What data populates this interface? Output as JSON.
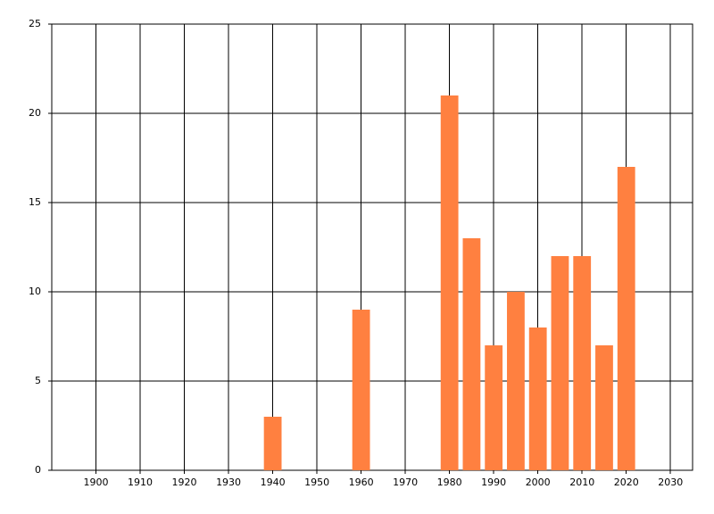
{
  "chart_data": {
    "type": "bar",
    "x": [
      1940,
      1960,
      1980,
      1985,
      1990,
      1995,
      2000,
      2005,
      2010,
      2015,
      2020
    ],
    "values": [
      3,
      9,
      21,
      13,
      7,
      10,
      8,
      12,
      12,
      7,
      17
    ],
    "color": "#ff8040",
    "xlim": [
      1890,
      2035
    ],
    "xticks": [
      1900,
      1910,
      1920,
      1930,
      1940,
      1950,
      1960,
      1970,
      1980,
      1990,
      2000,
      2010,
      2020,
      2030
    ],
    "ylim": [
      0,
      25
    ],
    "yticks": [
      0,
      5,
      10,
      15,
      20,
      25
    ],
    "grid": true
  }
}
